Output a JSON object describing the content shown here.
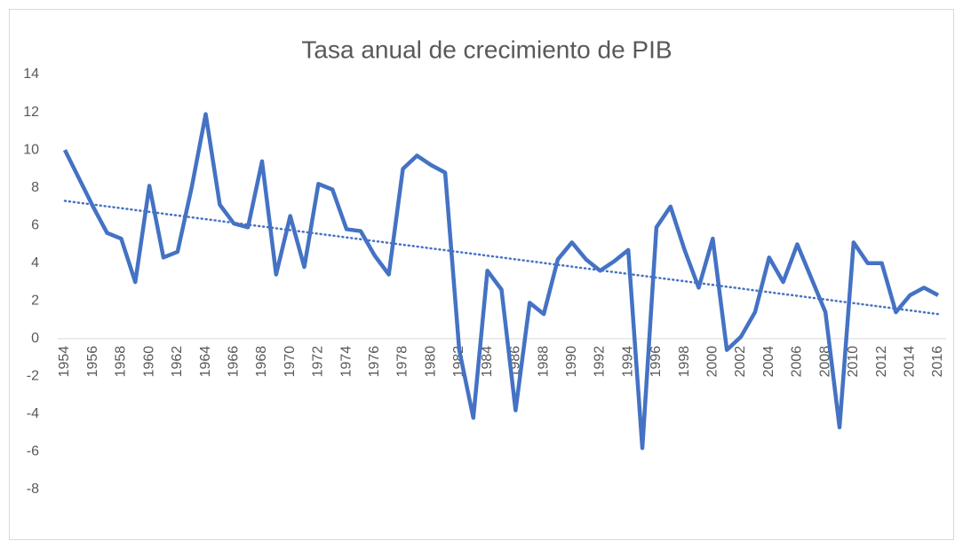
{
  "chart_data": {
    "type": "line",
    "title": "Tasa anual de crecimiento de PIB",
    "x": [
      1954,
      1955,
      1956,
      1957,
      1958,
      1959,
      1960,
      1961,
      1962,
      1963,
      1964,
      1965,
      1966,
      1967,
      1968,
      1969,
      1970,
      1971,
      1972,
      1973,
      1974,
      1975,
      1976,
      1977,
      1978,
      1979,
      1980,
      1981,
      1982,
      1983,
      1984,
      1985,
      1986,
      1987,
      1988,
      1989,
      1990,
      1991,
      1992,
      1993,
      1994,
      1995,
      1996,
      1997,
      1998,
      1999,
      2000,
      2001,
      2002,
      2003,
      2004,
      2005,
      2006,
      2007,
      2008,
      2009,
      2010,
      2011,
      2012,
      2013,
      2014,
      2015,
      2016
    ],
    "series": [
      {
        "color": "#4472c4",
        "values": [
          10.0,
          8.5,
          7.0,
          5.6,
          5.3,
          3.0,
          8.1,
          4.3,
          4.6,
          8.0,
          11.9,
          7.1,
          6.1,
          5.9,
          9.4,
          3.4,
          6.5,
          3.8,
          8.2,
          7.9,
          5.8,
          5.7,
          4.4,
          3.4,
          9.0,
          9.7,
          9.2,
          8.8,
          -0.6,
          -4.2,
          3.6,
          2.6,
          -3.8,
          1.9,
          1.3,
          4.2,
          5.1,
          4.2,
          3.6,
          4.1,
          4.7,
          -5.8,
          5.9,
          7.0,
          4.7,
          2.7,
          5.3,
          -0.6,
          0.1,
          1.4,
          4.3,
          3.0,
          5.0,
          3.2,
          1.4,
          -4.7,
          5.1,
          4.0,
          4.0,
          1.4,
          2.3,
          2.7,
          2.3
        ]
      }
    ],
    "trendline": {
      "color": "#4472c4",
      "values": [
        7.3,
        1.3
      ]
    },
    "xlim": [
      1954,
      2016
    ],
    "xticks": [
      1954,
      1956,
      1958,
      1960,
      1962,
      1964,
      1966,
      1968,
      1970,
      1972,
      1974,
      1976,
      1978,
      1980,
      1982,
      1984,
      1986,
      1988,
      1990,
      1992,
      1994,
      1996,
      1998,
      2000,
      2002,
      2004,
      2006,
      2008,
      2010,
      2012,
      2014,
      2016
    ],
    "ylim": [
      -8,
      14
    ],
    "yticks": [
      14,
      12,
      10,
      8,
      6,
      4,
      2,
      0,
      -2,
      -4,
      -6,
      -8
    ],
    "grid": false
  }
}
